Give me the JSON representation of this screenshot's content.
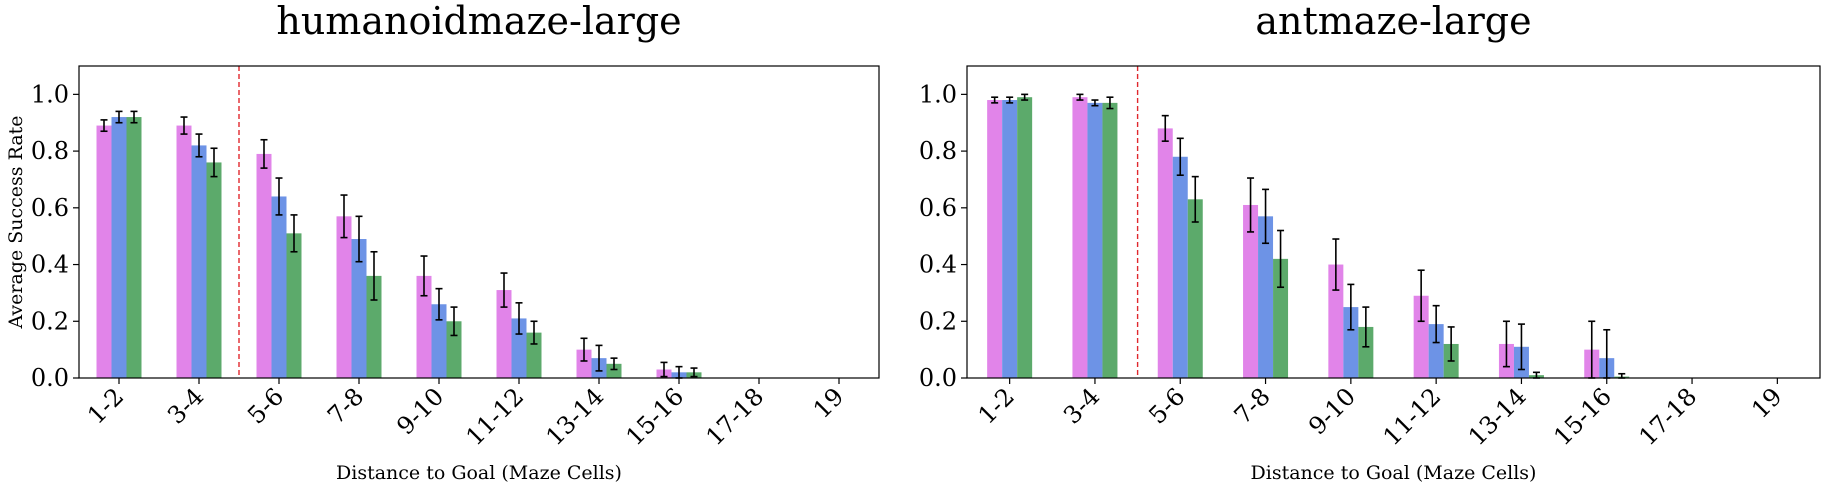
{
  "colors": {
    "series": [
      "#e184e9",
      "#6d93e6",
      "#5caa6b"
    ],
    "threshold_line": "#e0282d",
    "error_bar": "#000000"
  },
  "chart_data": [
    {
      "type": "bar",
      "title": "humanoidmaze-large",
      "xlabel": "Distance to Goal (Maze Cells)",
      "ylabel": "Average Success Rate",
      "ylim": [
        0,
        1.1
      ],
      "yticks": [
        "0.0",
        "0.2",
        "0.4",
        "0.6",
        "0.8",
        "1.0"
      ],
      "grid": false,
      "legend": "none",
      "threshold_after_category": "3-4",
      "categories": [
        "1-2",
        "3-4",
        "5-6",
        "7-8",
        "9-10",
        "11-12",
        "13-14",
        "15-16",
        "17-18",
        "19"
      ],
      "series": [
        {
          "values": [
            0.89,
            0.89,
            0.79,
            0.57,
            0.36,
            0.31,
            0.1,
            0.03,
            0,
            0
          ],
          "errors": [
            0.02,
            0.03,
            0.05,
            0.075,
            0.07,
            0.06,
            0.04,
            0.025,
            0,
            0
          ]
        },
        {
          "values": [
            0.92,
            0.82,
            0.64,
            0.49,
            0.26,
            0.21,
            0.07,
            0.02,
            0,
            0
          ],
          "errors": [
            0.02,
            0.04,
            0.065,
            0.08,
            0.055,
            0.055,
            0.045,
            0.02,
            0,
            0
          ]
        },
        {
          "values": [
            0.92,
            0.76,
            0.51,
            0.36,
            0.2,
            0.16,
            0.05,
            0.02,
            0,
            0
          ],
          "errors": [
            0.02,
            0.05,
            0.065,
            0.085,
            0.05,
            0.04,
            0.02,
            0.015,
            0,
            0
          ]
        }
      ]
    },
    {
      "type": "bar",
      "title": "antmaze-large",
      "xlabel": "Distance to Goal (Maze Cells)",
      "ylabel": "",
      "ylim": [
        0,
        1.1
      ],
      "yticks": [
        "0.0",
        "0.2",
        "0.4",
        "0.6",
        "0.8",
        "1.0"
      ],
      "grid": false,
      "legend": "none",
      "threshold_after_category": "3-4",
      "categories": [
        "1-2",
        "3-4",
        "5-6",
        "7-8",
        "9-10",
        "11-12",
        "13-14",
        "15-16",
        "17-18",
        "19"
      ],
      "series": [
        {
          "values": [
            0.98,
            0.99,
            0.88,
            0.61,
            0.4,
            0.29,
            0.12,
            0.1,
            0,
            0
          ],
          "errors": [
            0.01,
            0.01,
            0.045,
            0.095,
            0.09,
            0.09,
            0.08,
            0.1,
            0,
            0
          ]
        },
        {
          "values": [
            0.98,
            0.97,
            0.78,
            0.57,
            0.25,
            0.19,
            0.11,
            0.07,
            0,
            0
          ],
          "errors": [
            0.01,
            0.01,
            0.065,
            0.095,
            0.08,
            0.065,
            0.08,
            0.1,
            0,
            0
          ]
        },
        {
          "values": [
            0.99,
            0.97,
            0.63,
            0.42,
            0.18,
            0.12,
            0.01,
            0.005,
            0,
            0
          ],
          "errors": [
            0.01,
            0.02,
            0.08,
            0.1,
            0.07,
            0.06,
            0.01,
            0.01,
            0,
            0
          ]
        }
      ]
    }
  ]
}
